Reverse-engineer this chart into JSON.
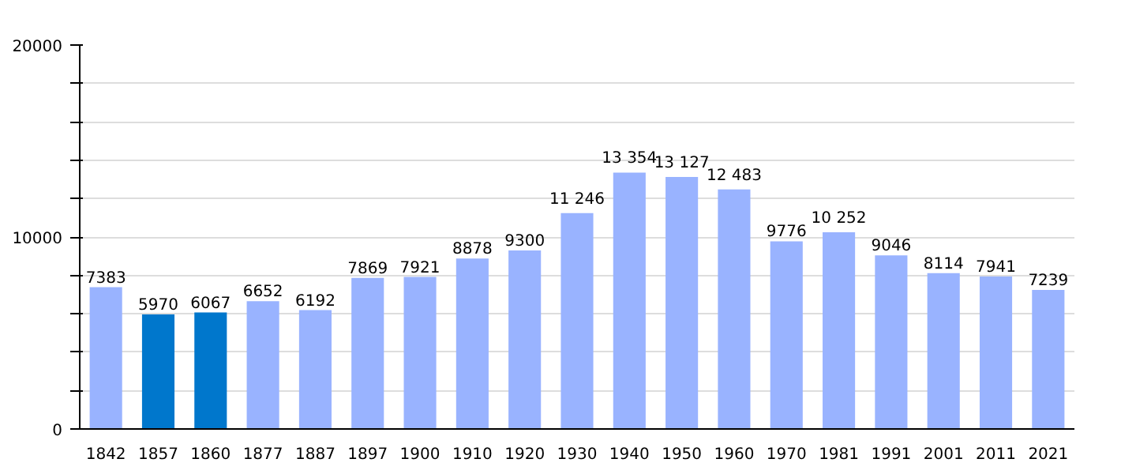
{
  "chart_data": {
    "type": "bar",
    "categories": [
      "1842",
      "1857",
      "1860",
      "1877",
      "1887",
      "1897",
      "1900",
      "1910",
      "1920",
      "1930",
      "1940",
      "1950",
      "1960",
      "1970",
      "1981",
      "1991",
      "2001",
      "2011",
      "2021"
    ],
    "values": [
      7383,
      5970,
      6067,
      6652,
      6192,
      7869,
      7921,
      8878,
      9300,
      11246,
      13354,
      13127,
      12483,
      9776,
      10252,
      9046,
      8114,
      7941,
      7239
    ],
    "colors": [
      "#99b3ff",
      "#0077cc",
      "#0077cc",
      "#99b3ff",
      "#99b3ff",
      "#99b3ff",
      "#99b3ff",
      "#99b3ff",
      "#99b3ff",
      "#99b3ff",
      "#99b3ff",
      "#99b3ff",
      "#99b3ff",
      "#99b3ff",
      "#99b3ff",
      "#99b3ff",
      "#99b3ff",
      "#99b3ff",
      "#99b3ff"
    ],
    "value_labels": [
      "7383",
      "5970",
      "6067",
      "6652",
      "6192",
      "7869",
      "7921",
      "8878",
      "9300",
      "11 246",
      "13 354",
      "13 127",
      "12 483",
      "9776",
      "10 252",
      "9046",
      "8114",
      "7941",
      "7239"
    ],
    "ylim": [
      0,
      20000
    ],
    "yticks": [
      0,
      {
        "value": 2000,
        "label": null
      },
      {
        "value": 4000,
        "label": null
      },
      {
        "value": 6000,
        "label": null
      },
      {
        "value": 8000,
        "label": null
      },
      10000,
      {
        "value": 12000,
        "label": null
      },
      {
        "value": 14000,
        "label": null
      },
      {
        "value": 16000,
        "label": null
      },
      {
        "value": 18000,
        "label": null
      },
      20000
    ],
    "grid": "y"
  }
}
